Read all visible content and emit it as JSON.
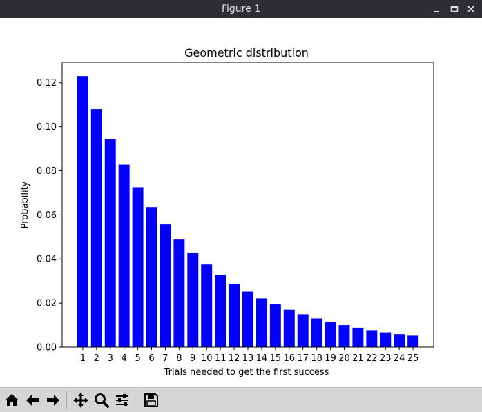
{
  "window": {
    "title": "Figure 1",
    "controls": [
      "minimize-icon",
      "maximize-icon",
      "close-icon"
    ]
  },
  "toolbar": {
    "buttons": [
      "home-icon",
      "back-icon",
      "forward-icon",
      "pan-icon",
      "zoom-icon",
      "configure-subplots-icon",
      "save-icon"
    ]
  },
  "chart_data": {
    "type": "bar",
    "title": "Geometric distribution",
    "xlabel": "Trials needed to get the first success",
    "ylabel": "Probability",
    "categories": [
      "1",
      "2",
      "3",
      "4",
      "5",
      "6",
      "7",
      "8",
      "9",
      "10",
      "11",
      "12",
      "13",
      "14",
      "15",
      "16",
      "17",
      "18",
      "19",
      "20",
      "21",
      "22",
      "23",
      "24",
      "25"
    ],
    "values": [
      0.123,
      0.108,
      0.0945,
      0.0828,
      0.0725,
      0.0635,
      0.0557,
      0.0488,
      0.0428,
      0.0375,
      0.0328,
      0.0288,
      0.0252,
      0.0221,
      0.0194,
      0.017,
      0.0149,
      0.013,
      0.0114,
      0.01,
      0.0088,
      0.0077,
      0.0067,
      0.0059,
      0.0052
    ],
    "yticks": [
      "0.00",
      "0.02",
      "0.04",
      "0.06",
      "0.08",
      "0.10",
      "0.12"
    ],
    "ylim": [
      0,
      0.129
    ],
    "bar_color": "#0000ff",
    "grid": false
  }
}
